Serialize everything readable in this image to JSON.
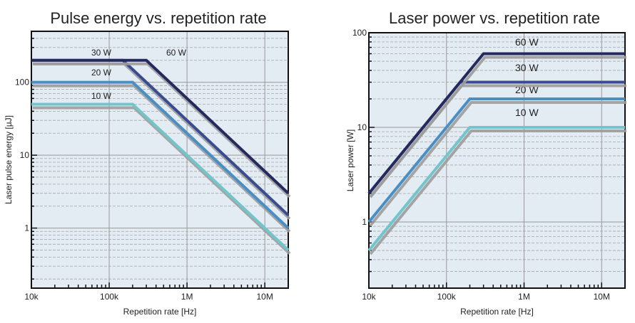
{
  "chart_data": [
    {
      "type": "line",
      "title": "Pulse energy vs. repetition rate",
      "xlabel": "Repetition rate [Hz]",
      "ylabel": "Laser pulse energy [µJ]",
      "xscale": "log",
      "yscale": "log",
      "xlim": [
        10000,
        20000000
      ],
      "ylim": [
        0.15,
        500
      ],
      "xticks": [
        {
          "v": 10000,
          "label": "10k"
        },
        {
          "v": 100000,
          "label": "100k"
        },
        {
          "v": 1000000,
          "label": "1M"
        },
        {
          "v": 10000000,
          "label": "10M"
        }
      ],
      "yticks": [
        {
          "v": 1,
          "label": "1"
        },
        {
          "v": 10,
          "label": "10"
        },
        {
          "v": 100,
          "label": "100"
        }
      ],
      "grid": true,
      "background": "#e3ebf3",
      "series": [
        {
          "name": "60 W",
          "color": "#252a5e",
          "x": [
            10000,
            300000,
            20000000
          ],
          "y": [
            200,
            200,
            3
          ]
        },
        {
          "name": "30 W",
          "color": "#3b4b90",
          "x": [
            10000,
            150000,
            20000000
          ],
          "y": [
            200,
            200,
            1.5
          ]
        },
        {
          "name": "20 W",
          "color": "#4a8fc3",
          "x": [
            10000,
            200000,
            20000000
          ],
          "y": [
            100,
            100,
            1
          ]
        },
        {
          "name": "10 W",
          "color": "#72c5cb",
          "x": [
            10000,
            200000,
            20000000
          ],
          "y": [
            50,
            50,
            0.5
          ]
        }
      ]
    },
    {
      "type": "line",
      "title": "Laser power vs. repetition rate",
      "xlabel": "Repetition rate [Hz]",
      "ylabel": "Laser power [W]",
      "xscale": "log",
      "yscale": "log",
      "xlim": [
        10000,
        20000000
      ],
      "ylim": [
        0.2,
        100
      ],
      "xticks": [
        {
          "v": 10000,
          "label": "10k"
        },
        {
          "v": 100000,
          "label": "100k"
        },
        {
          "v": 1000000,
          "label": "1M"
        },
        {
          "v": 10000000,
          "label": "10M"
        }
      ],
      "yticks": [
        {
          "v": 1,
          "label": "1"
        },
        {
          "v": 10,
          "label": "10"
        },
        {
          "v": 100,
          "label": "100"
        }
      ],
      "grid": true,
      "background": "#e3ebf3",
      "series": [
        {
          "name": "60 W",
          "color": "#252a5e",
          "x": [
            10000,
            300000,
            20000000
          ],
          "y": [
            2,
            60,
            60
          ]
        },
        {
          "name": "30 W",
          "color": "#3b4b90",
          "x": [
            10000,
            150000,
            20000000
          ],
          "y": [
            2,
            30,
            30
          ]
        },
        {
          "name": "20 W",
          "color": "#4a8fc3",
          "x": [
            10000,
            200000,
            20000000
          ],
          "y": [
            1,
            20,
            20
          ]
        },
        {
          "name": "10 W",
          "color": "#72c5cb",
          "x": [
            10000,
            200000,
            20000000
          ],
          "y": [
            0.5,
            10,
            10
          ]
        }
      ]
    }
  ]
}
